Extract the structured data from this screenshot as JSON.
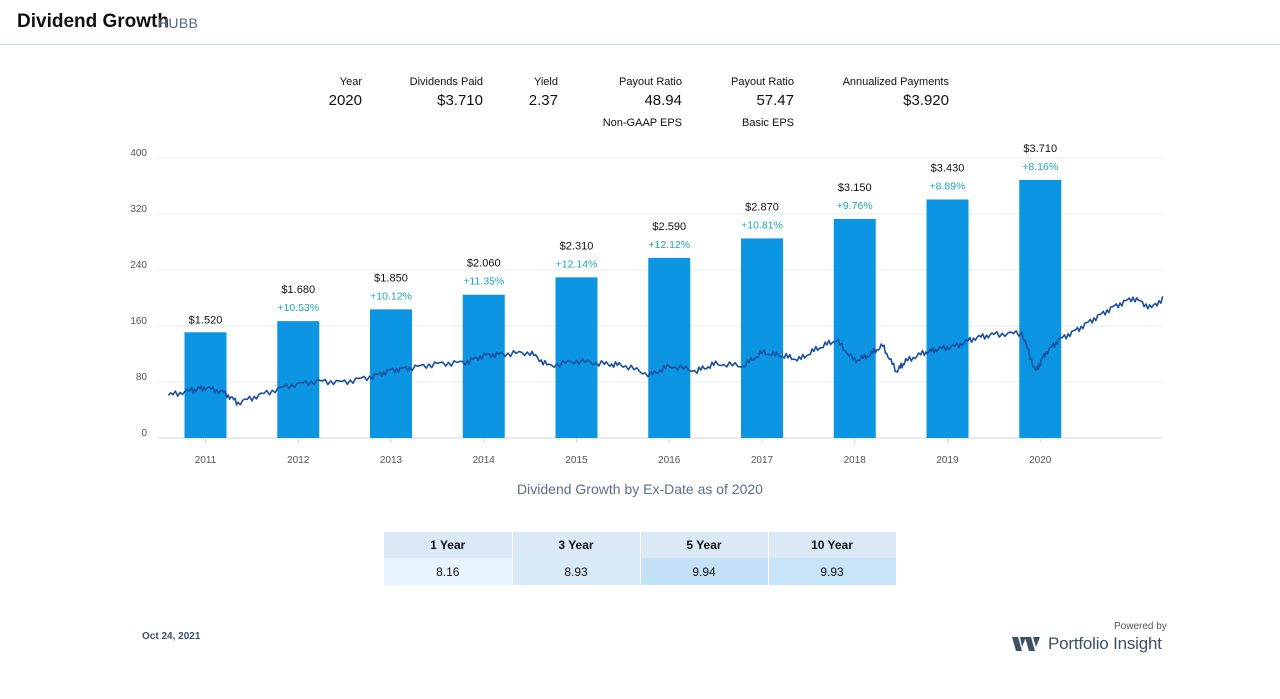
{
  "header": {
    "title": "Dividend Growth",
    "ticker": "HUBB"
  },
  "stats": [
    {
      "label": "Year",
      "value": "2020",
      "sub": ""
    },
    {
      "label": "Dividends Paid",
      "value": "$3.710",
      "sub": ""
    },
    {
      "label": "Yield",
      "value": "2.37",
      "sub": ""
    },
    {
      "label": "Payout Ratio",
      "value": "48.94",
      "sub": "Non-GAAP EPS"
    },
    {
      "label": "Payout Ratio",
      "value": "57.47",
      "sub": "Basic EPS"
    },
    {
      "label": "Annualized Payments",
      "value": "$3.920",
      "sub": ""
    }
  ],
  "chart_data": {
    "type": "bar",
    "title": "Dividend Growth by Ex-Date as of 2020",
    "categories": [
      "2011",
      "2012",
      "2013",
      "2014",
      "2015",
      "2016",
      "2017",
      "2018",
      "2019",
      "2020"
    ],
    "series": [
      {
        "values": [
          1.52,
          1.68,
          1.85,
          2.06,
          2.31,
          2.59,
          2.87,
          3.15,
          3.43,
          3.71
        ],
        "value_labels": [
          "$1.520",
          "$1.680",
          "$1.850",
          "$2.060",
          "$2.310",
          "$2.590",
          "$2.870",
          "$3.150",
          "$3.430",
          "$3.710"
        ],
        "growth_labels": [
          "",
          "+10.53%",
          "+10.12%",
          "+11.35%",
          "+12.14%",
          "+12.12%",
          "+10.81%",
          "+9.76%",
          "+8.89%",
          "+8.16%"
        ],
        "color": "#0b95e2"
      },
      {
        "type": "line",
        "color": "#1a4fa0",
        "x": [
          2010.6,
          2010.85,
          2011.0,
          2011.2,
          2011.35,
          2011.6,
          2011.9,
          2012.2,
          2012.5,
          2012.8,
          2013.0,
          2013.2,
          2013.5,
          2013.8,
          2014.0,
          2014.2,
          2014.5,
          2014.7,
          2015.0,
          2015.3,
          2015.5,
          2015.8,
          2016.0,
          2016.3,
          2016.5,
          2016.8,
          2017.0,
          2017.2,
          2017.4,
          2017.6,
          2017.8,
          2018.0,
          2018.15,
          2018.3,
          2018.45,
          2018.55,
          2018.75,
          2018.9,
          2019.1,
          2019.3,
          2019.5,
          2019.8,
          2019.95,
          2020.05,
          2020.2,
          2020.4,
          2020.6,
          2020.8,
          2021.0,
          2021.2,
          2021.4,
          2021.55,
          2021.65,
          2021.8,
          2021.9
        ],
        "y": [
          61,
          68,
          72,
          65,
          50,
          62,
          75,
          81,
          80,
          88,
          97,
          100,
          106,
          108,
          118,
          120,
          122,
          103,
          110,
          106,
          104,
          90,
          103,
          96,
          106,
          103,
          122,
          118,
          112,
          128,
          140,
          110,
          118,
          132,
          95,
          110,
          122,
          127,
          132,
          143,
          148,
          150,
          95,
          120,
          140,
          155,
          172,
          188,
          200,
          186,
          208,
          180,
          205,
          190,
          190
        ]
      }
    ],
    "y_axis": {
      "ticks": [
        "0",
        "80",
        "160",
        "240",
        "320",
        "400"
      ],
      "ylim": [
        0,
        400
      ]
    },
    "grid": true
  },
  "cagr_table": {
    "headers": [
      "1 Year",
      "3 Year",
      "5 Year",
      "10 Year"
    ],
    "values": [
      "8.16",
      "8.93",
      "9.94",
      "9.93"
    ],
    "cell_colors": [
      "#e6f2fc",
      "#d6eaf9",
      "#c4e2f7",
      "#c8e4f8"
    ]
  },
  "footer": {
    "date": "Oct 24, 2021",
    "powered_by": "Powered by",
    "brand": "Portfolio Insight"
  }
}
